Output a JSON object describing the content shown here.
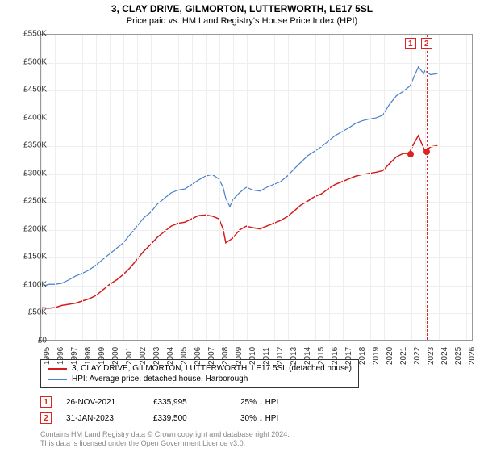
{
  "title": "3, CLAY DRIVE, GILMORTON, LUTTERWORTH, LE17 5SL",
  "subtitle": "Price paid vs. HM Land Registry's House Price Index (HPI)",
  "chart": {
    "type": "line",
    "xlim": [
      1995,
      2026.5
    ],
    "ylim": [
      0,
      550000
    ],
    "ytick_step": 50000,
    "yticks_labels": [
      "£0",
      "£50K",
      "£100K",
      "£150K",
      "£200K",
      "£250K",
      "£300K",
      "£350K",
      "£400K",
      "£450K",
      "£500K",
      "£550K"
    ],
    "xticks": [
      1995,
      1996,
      1997,
      1998,
      1999,
      2000,
      2001,
      2002,
      2003,
      2004,
      2005,
      2006,
      2007,
      2008,
      2009,
      2010,
      2011,
      2012,
      2013,
      2014,
      2015,
      2016,
      2017,
      2018,
      2019,
      2020,
      2021,
      2022,
      2023,
      2024,
      2025,
      2026
    ],
    "background_color": "#ffffff",
    "grid_color": "#eeeeee",
    "border_color": "#999999",
    "series": [
      {
        "name": "3, CLAY DRIVE, GILMORTON, LUTTERWORTH, LE17 5SL (detached house)",
        "color": "#d41c1c",
        "line_width": 1.5,
        "data": [
          [
            1995,
            58000
          ],
          [
            1995.5,
            57000
          ],
          [
            1996,
            58000
          ],
          [
            1996.5,
            62000
          ],
          [
            1997,
            64000
          ],
          [
            1997.5,
            66000
          ],
          [
            1998,
            70000
          ],
          [
            1998.5,
            74000
          ],
          [
            1999,
            80000
          ],
          [
            1999.5,
            90000
          ],
          [
            2000,
            100000
          ],
          [
            2000.5,
            108000
          ],
          [
            2001,
            118000
          ],
          [
            2001.5,
            130000
          ],
          [
            2002,
            145000
          ],
          [
            2002.5,
            160000
          ],
          [
            2003,
            172000
          ],
          [
            2003.5,
            185000
          ],
          [
            2004,
            195000
          ],
          [
            2004.5,
            205000
          ],
          [
            2005,
            210000
          ],
          [
            2005.5,
            212000
          ],
          [
            2006,
            218000
          ],
          [
            2006.5,
            224000
          ],
          [
            2007,
            225000
          ],
          [
            2007.5,
            223000
          ],
          [
            2008,
            218000
          ],
          [
            2008.3,
            200000
          ],
          [
            2008.5,
            175000
          ],
          [
            2009,
            183000
          ],
          [
            2009.5,
            198000
          ],
          [
            2010,
            205000
          ],
          [
            2010.5,
            202000
          ],
          [
            2011,
            200000
          ],
          [
            2011.5,
            205000
          ],
          [
            2012,
            210000
          ],
          [
            2012.5,
            215000
          ],
          [
            2013,
            222000
          ],
          [
            2013.5,
            232000
          ],
          [
            2014,
            243000
          ],
          [
            2014.5,
            250000
          ],
          [
            2015,
            258000
          ],
          [
            2015.5,
            263000
          ],
          [
            2016,
            272000
          ],
          [
            2016.5,
            280000
          ],
          [
            2017,
            285000
          ],
          [
            2017.5,
            290000
          ],
          [
            2018,
            295000
          ],
          [
            2018.5,
            298000
          ],
          [
            2019,
            300000
          ],
          [
            2019.5,
            302000
          ],
          [
            2020,
            305000
          ],
          [
            2020.5,
            318000
          ],
          [
            2021,
            330000
          ],
          [
            2021.5,
            336000
          ],
          [
            2021.9,
            335995
          ],
          [
            2022,
            340000
          ],
          [
            2022.3,
            355000
          ],
          [
            2022.6,
            368000
          ],
          [
            2023,
            345000
          ],
          [
            2023.08,
            339500
          ],
          [
            2023.5,
            348000
          ],
          [
            2024,
            350000
          ]
        ]
      },
      {
        "name": "HPI: Average price, detached house, Harborough",
        "color": "#4a7fc9",
        "line_width": 1.2,
        "data": [
          [
            1995,
            95000
          ],
          [
            1995.5,
            100000
          ],
          [
            1996,
            100000
          ],
          [
            1996.5,
            102000
          ],
          [
            1997,
            108000
          ],
          [
            1997.5,
            115000
          ],
          [
            1998,
            120000
          ],
          [
            1998.5,
            126000
          ],
          [
            1999,
            135000
          ],
          [
            1999.5,
            145000
          ],
          [
            2000,
            155000
          ],
          [
            2000.5,
            165000
          ],
          [
            2001,
            175000
          ],
          [
            2001.5,
            190000
          ],
          [
            2002,
            205000
          ],
          [
            2002.5,
            220000
          ],
          [
            2003,
            230000
          ],
          [
            2003.5,
            245000
          ],
          [
            2004,
            255000
          ],
          [
            2004.5,
            265000
          ],
          [
            2005,
            270000
          ],
          [
            2005.5,
            272000
          ],
          [
            2006,
            280000
          ],
          [
            2006.5,
            288000
          ],
          [
            2007,
            295000
          ],
          [
            2007.5,
            298000
          ],
          [
            2008,
            290000
          ],
          [
            2008.3,
            275000
          ],
          [
            2008.5,
            255000
          ],
          [
            2008.8,
            240000
          ],
          [
            2009,
            252000
          ],
          [
            2009.5,
            265000
          ],
          [
            2010,
            275000
          ],
          [
            2010.5,
            270000
          ],
          [
            2011,
            268000
          ],
          [
            2011.5,
            275000
          ],
          [
            2012,
            280000
          ],
          [
            2012.5,
            285000
          ],
          [
            2013,
            295000
          ],
          [
            2013.5,
            308000
          ],
          [
            2014,
            320000
          ],
          [
            2014.5,
            332000
          ],
          [
            2015,
            340000
          ],
          [
            2015.5,
            348000
          ],
          [
            2016,
            358000
          ],
          [
            2016.5,
            368000
          ],
          [
            2017,
            375000
          ],
          [
            2017.5,
            382000
          ],
          [
            2018,
            390000
          ],
          [
            2018.5,
            395000
          ],
          [
            2019,
            398000
          ],
          [
            2019.5,
            400000
          ],
          [
            2020,
            405000
          ],
          [
            2020.5,
            425000
          ],
          [
            2021,
            440000
          ],
          [
            2021.5,
            448000
          ],
          [
            2022,
            458000
          ],
          [
            2022.3,
            475000
          ],
          [
            2022.6,
            492000
          ],
          [
            2023,
            480000
          ],
          [
            2023.08,
            485000
          ],
          [
            2023.5,
            478000
          ],
          [
            2024,
            480000
          ]
        ]
      }
    ],
    "markers": [
      {
        "id": "1",
        "x": 2021.9,
        "y": 335995
      },
      {
        "id": "2",
        "x": 2023.08,
        "y": 339500
      }
    ]
  },
  "legend": {
    "items": [
      {
        "color": "#d41c1c",
        "label": "3, CLAY DRIVE, GILMORTON, LUTTERWORTH, LE17 5SL (detached house)"
      },
      {
        "color": "#4a7fc9",
        "label": "HPI: Average price, detached house, Harborough"
      }
    ]
  },
  "footer_rows": [
    {
      "id": "1",
      "date": "26-NOV-2021",
      "price": "£335,995",
      "pct": "25%",
      "arrow": "↓",
      "suffix": "HPI"
    },
    {
      "id": "2",
      "date": "31-JAN-2023",
      "price": "£339,500",
      "pct": "30%",
      "arrow": "↓",
      "suffix": "HPI"
    }
  ],
  "attribution": {
    "line1": "Contains HM Land Registry data © Crown copyright and database right 2024.",
    "line2": "This data is licensed under the Open Government Licence v3.0."
  }
}
